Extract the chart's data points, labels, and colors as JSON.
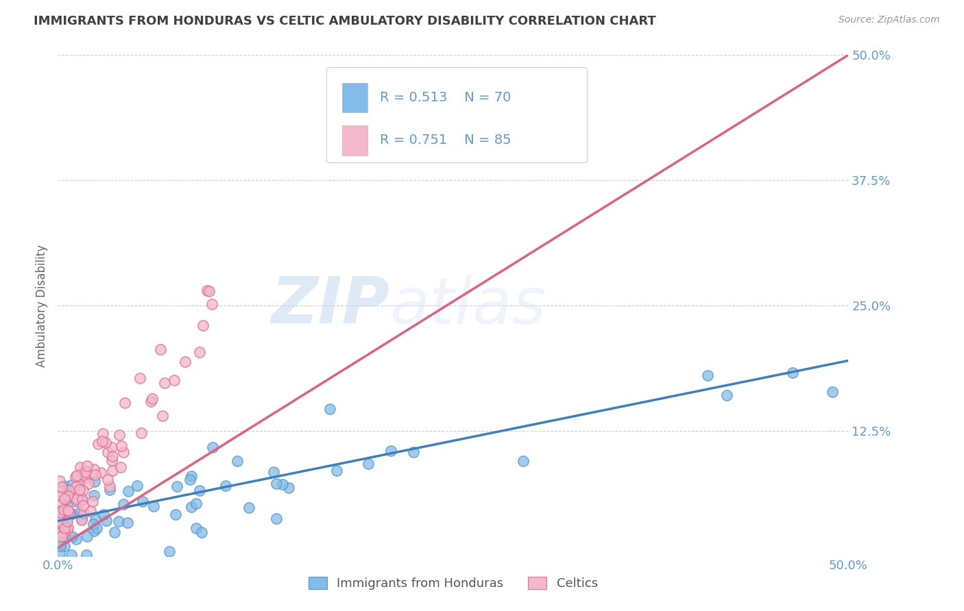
{
  "title": "IMMIGRANTS FROM HONDURAS VS CELTIC AMBULATORY DISABILITY CORRELATION CHART",
  "source": "Source: ZipAtlas.com",
  "ylabel": "Ambulatory Disability",
  "xmin": 0.0,
  "xmax": 0.5,
  "ymin": 0.0,
  "ymax": 0.5,
  "yticks": [
    0.0,
    0.125,
    0.25,
    0.375,
    0.5
  ],
  "ytick_labels": [
    "",
    "12.5%",
    "25.0%",
    "37.5%",
    "50.0%"
  ],
  "xticks": [
    0.0,
    0.125,
    0.25,
    0.375,
    0.5
  ],
  "xtick_labels": [
    "0.0%",
    "",
    "",
    "",
    "50.0%"
  ],
  "series1_label": "Immigrants from Honduras",
  "series1_color": "#82bce8",
  "series1_edge_color": "#5599cc",
  "series1_R": 0.513,
  "series1_N": 70,
  "series1_line_color": "#3a7fc1",
  "series2_label": "Celtics",
  "series2_color": "#f5b8cb",
  "series2_edge_color": "#e07090",
  "series2_R": 0.751,
  "series2_N": 85,
  "series2_line_color": "#e06080",
  "watermark_zip": "ZIP",
  "watermark_atlas": "atlas",
  "background_color": "#ffffff",
  "grid_color": "#cccccc",
  "tick_label_color": "#5b9bd5",
  "title_color": "#404040",
  "seed": 42
}
